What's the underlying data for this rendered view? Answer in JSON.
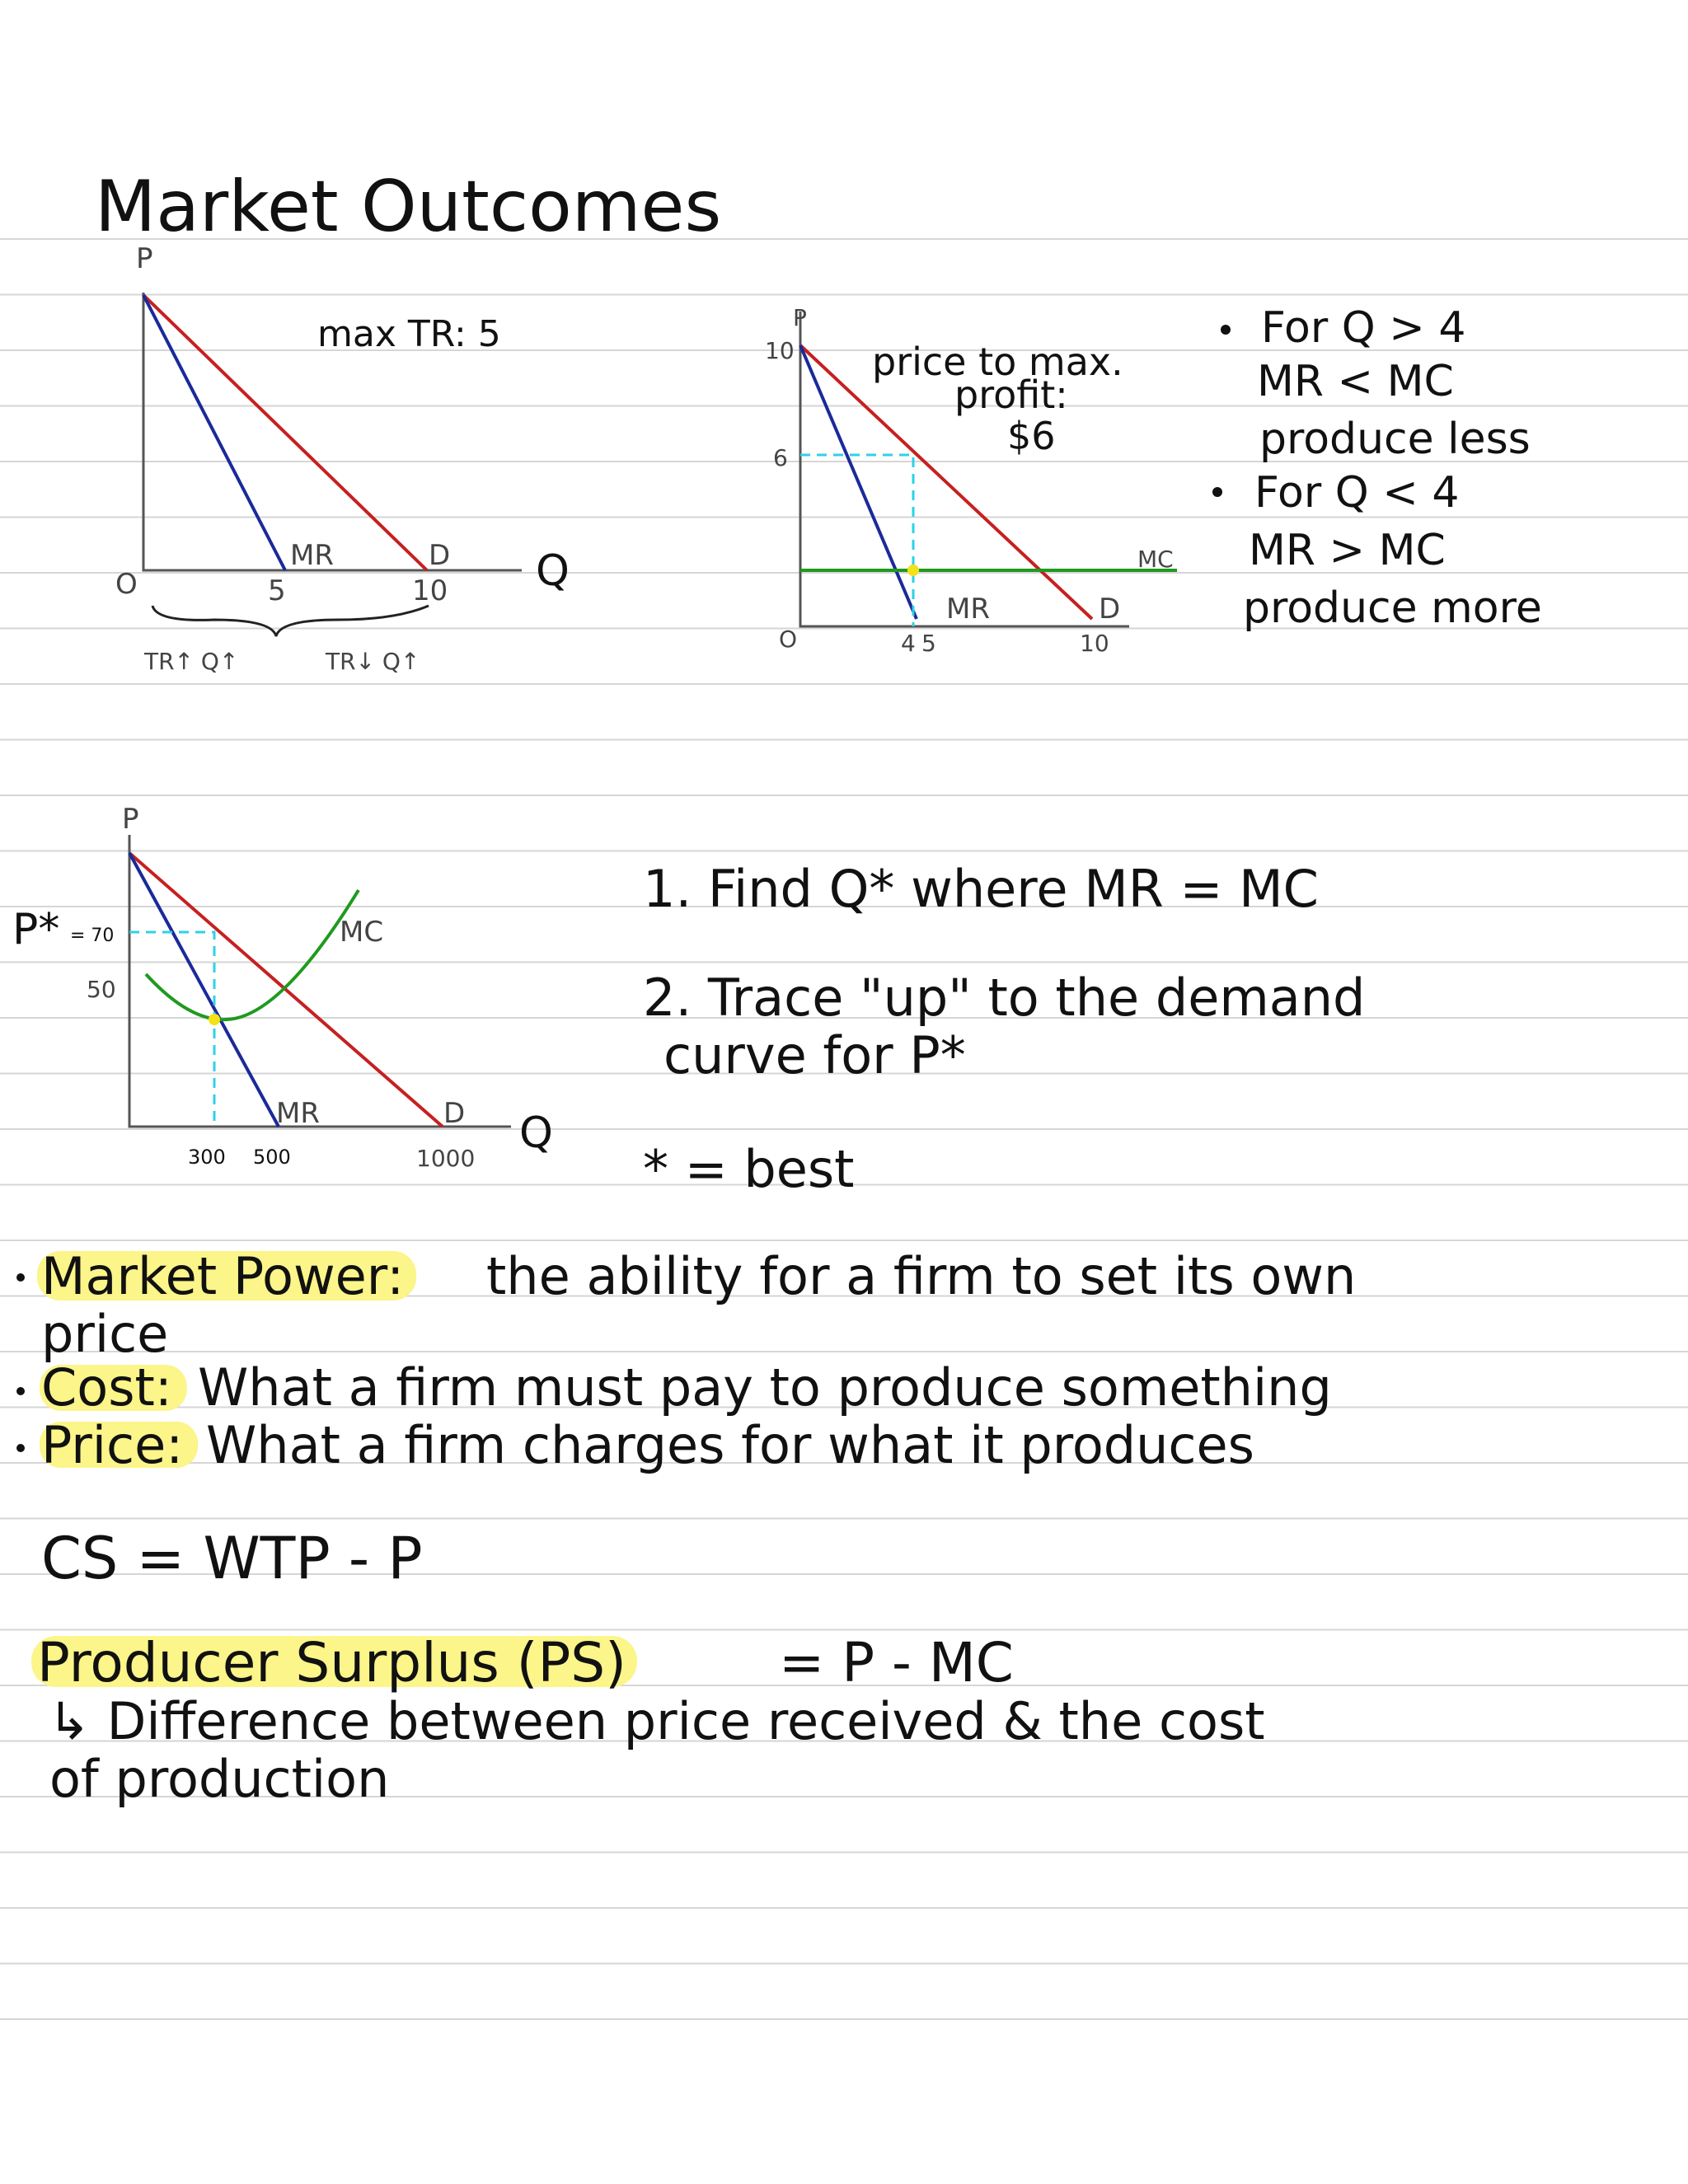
{
  "header": {
    "title": "Market Outcomes"
  },
  "graph1": {
    "y_label": "P",
    "x_label": "Q",
    "origin": "O",
    "mr": "MR",
    "d": "D",
    "x_ticks": [
      "5",
      "10"
    ],
    "note": "max TR: 5",
    "brace_left": "TR↑ Q↑",
    "brace_right": "TR↓ Q↑"
  },
  "graph2": {
    "y_label": "P",
    "origin": "O",
    "y_ticks": [
      "10",
      "6"
    ],
    "x_ticks": [
      "4",
      "5",
      "10"
    ],
    "mr": "MR",
    "d": "D",
    "mc": "MC",
    "note": [
      "price to max.",
      "profit:",
      "$6"
    ]
  },
  "bullets": [
    "For Q > 4",
    "MR < MC",
    "produce less",
    "For Q < 4",
    "MR > MC",
    "produce more"
  ],
  "graph3": {
    "y_label": "P",
    "x_label": "Q",
    "p_star": "P*",
    "p_star_value": "= 70",
    "y_ticks": [
      "50"
    ],
    "x_ticks": [
      "300",
      "500",
      "1000"
    ],
    "mr": "MR",
    "d": "D",
    "mc": "MC"
  },
  "steps": [
    "1. Find Q* where MR = MC",
    "2. Trace \"up\" to the demand",
    "curve for P*",
    "* = best"
  ],
  "definitions": [
    {
      "term": "Market Power:",
      "text": [
        "the ability for a firm to set its own",
        "price"
      ]
    },
    {
      "term": "Cost:",
      "text": [
        "What a firm must pay to produce something"
      ]
    },
    {
      "term": "Price:",
      "text": [
        "What a firm charges for what it produces"
      ]
    }
  ],
  "cs": "CS = WTP - P",
  "ps": {
    "term": "Producer Surplus (PS)",
    "formula": "= P - MC",
    "text": [
      "↳ Difference between price received & the cost",
      "of production"
    ]
  }
}
